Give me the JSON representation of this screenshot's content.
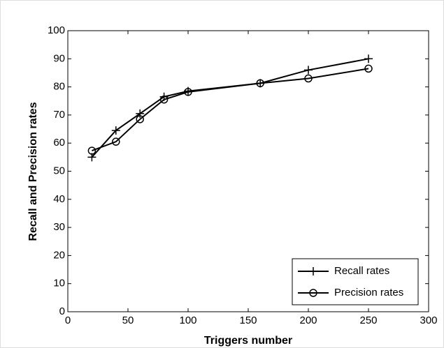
{
  "chart_data": {
    "type": "line",
    "xlabel": "Triggers number",
    "ylabel": "Recall and Precision rates",
    "x": [
      20,
      40,
      60,
      80,
      100,
      160,
      200,
      250
    ],
    "series": [
      {
        "name": "Recall rates",
        "color": "#000000",
        "marker": "plus",
        "values": [
          55,
          64.5,
          70.5,
          76.5,
          78.5,
          81.3,
          86,
          90
        ]
      },
      {
        "name": "Precision rates",
        "color": "#000000",
        "marker": "circle",
        "values": [
          57.3,
          60.5,
          68.5,
          75.5,
          78.2,
          81.3,
          83,
          86.5
        ]
      }
    ],
    "xlim": [
      0,
      300
    ],
    "xticks": [
      0,
      50,
      100,
      150,
      200,
      250,
      300
    ],
    "ylim": [
      0,
      100
    ],
    "yticks": [
      0,
      10,
      20,
      30,
      40,
      50,
      60,
      70,
      80,
      90,
      100
    ],
    "grid": false,
    "legend": "lower right"
  }
}
